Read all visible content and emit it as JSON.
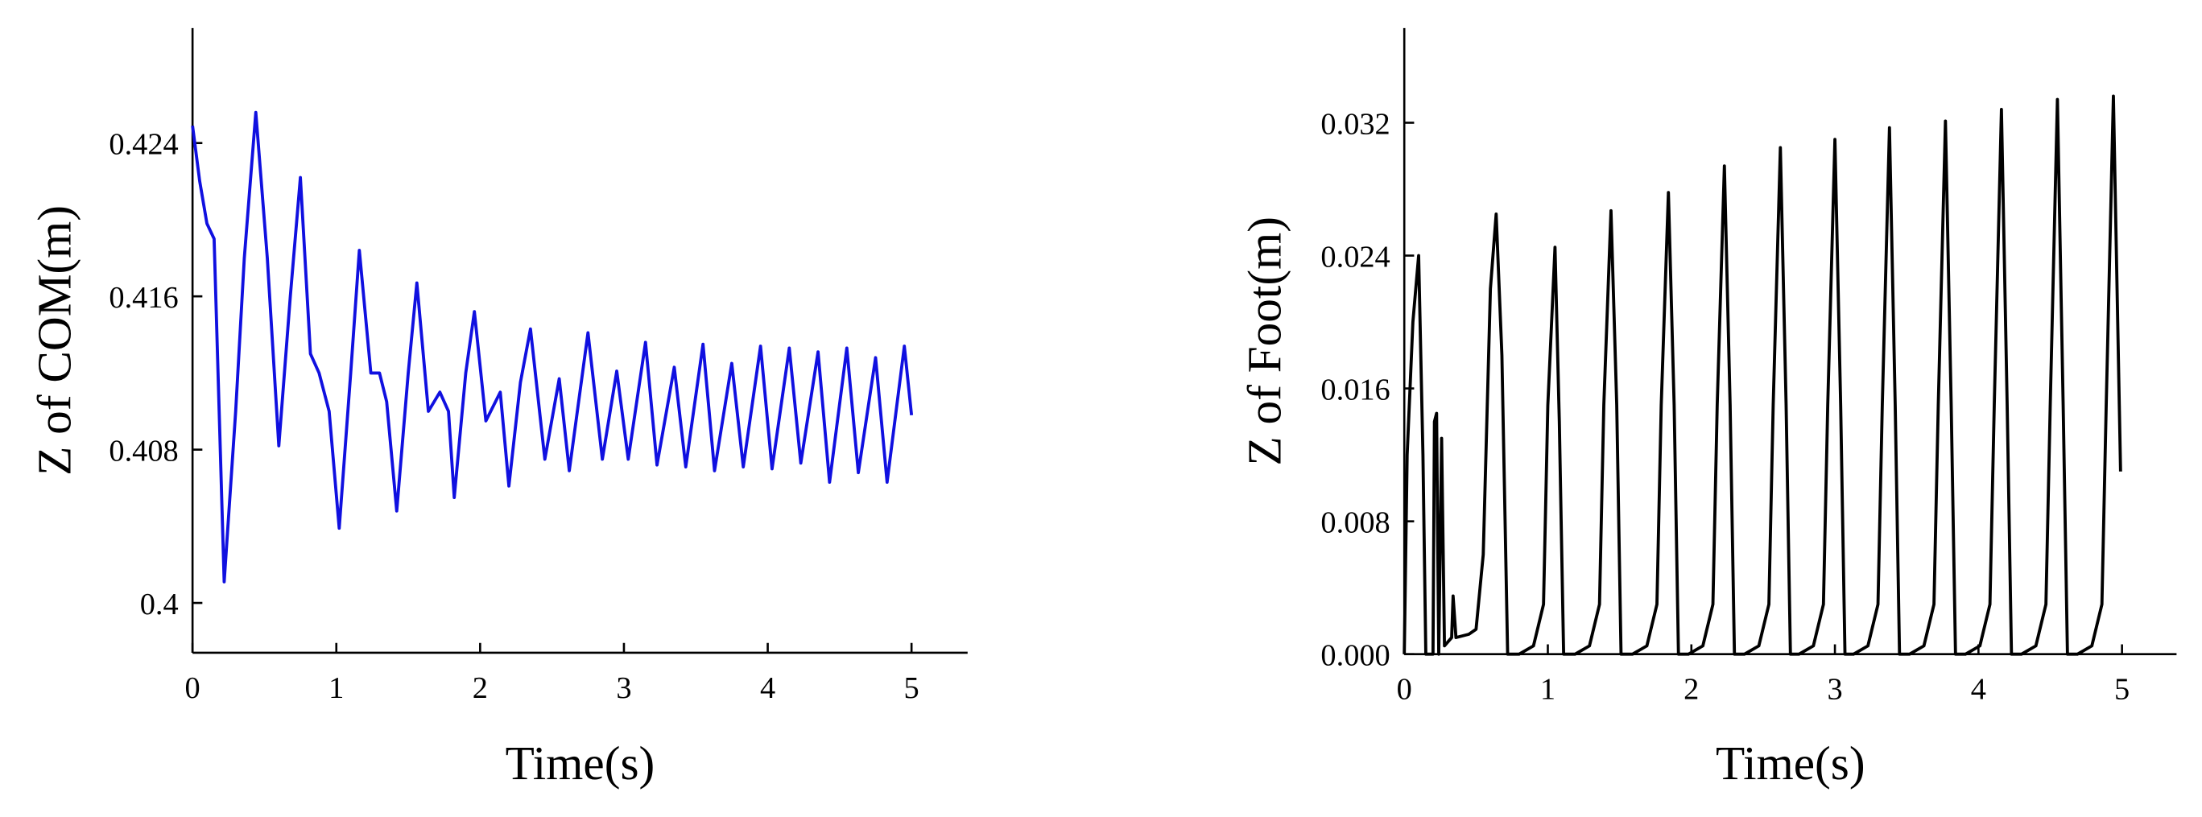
{
  "chart_data": [
    {
      "type": "line",
      "xlabel": "Time(s)",
      "ylabel": "Z of COM(m)",
      "color": "#1010e0",
      "xlim": [
        0,
        5.39
      ],
      "ylim": [
        0.3974,
        0.43
      ],
      "xticks": [
        0,
        1,
        2,
        3,
        4,
        5
      ],
      "yticks": [
        0.4,
        0.408,
        0.416,
        0.424
      ],
      "x": [
        0,
        0.05,
        0.1,
        0.15,
        0.22,
        0.3,
        0.36,
        0.44,
        0.52,
        0.6,
        0.68,
        0.75,
        0.82,
        0.88,
        0.95,
        1.02,
        1.1,
        1.16,
        1.24,
        1.3,
        1.35,
        1.42,
        1.5,
        1.56,
        1.64,
        1.72,
        1.78,
        1.82,
        1.9,
        1.96,
        2.04,
        2.14,
        2.2,
        2.28,
        2.35,
        2.45,
        2.55,
        2.62,
        2.75,
        2.85,
        2.95,
        3.03,
        3.15,
        3.23,
        3.35,
        3.43,
        3.55,
        3.63,
        3.75,
        3.83,
        3.95,
        4.03,
        4.15,
        4.23,
        4.35,
        4.43,
        4.55,
        4.63,
        4.75,
        4.83,
        4.95,
        5.0
      ],
      "values": [
        0.4249,
        0.422,
        0.4198,
        0.419,
        0.4011,
        0.41,
        0.418,
        0.4256,
        0.418,
        0.4082,
        0.416,
        0.4222,
        0.413,
        0.412,
        0.41,
        0.4039,
        0.412,
        0.4184,
        0.412,
        0.412,
        0.4105,
        0.4048,
        0.412,
        0.4167,
        0.41,
        0.411,
        0.41,
        0.4055,
        0.412,
        0.4152,
        0.4095,
        0.411,
        0.4061,
        0.4115,
        0.4143,
        0.4075,
        0.4117,
        0.4069,
        0.4141,
        0.4075,
        0.4121,
        0.4075,
        0.4136,
        0.4072,
        0.4123,
        0.4071,
        0.4135,
        0.4069,
        0.4125,
        0.4071,
        0.4134,
        0.407,
        0.4133,
        0.4073,
        0.4131,
        0.4063,
        0.4133,
        0.4068,
        0.4128,
        0.4063,
        0.4134,
        0.4098
      ]
    },
    {
      "type": "line",
      "xlabel": "Time(s)",
      "ylabel": "Z of Foot(m)",
      "color": "#000000",
      "xlim": [
        0,
        5.38
      ],
      "ylim": [
        0,
        0.0377
      ],
      "xticks": [
        0,
        1,
        2,
        3,
        4,
        5
      ],
      "yticks": [
        {
          "value": 0,
          "label": "0.000"
        },
        0.008,
        0.016,
        0.024,
        0.032
      ],
      "x": [
        0,
        0.02,
        0.06,
        0.1,
        0.13,
        0.15,
        0.2,
        0.21,
        0.225,
        0.24,
        0.26,
        0.28,
        0.33,
        0.34,
        0.36,
        0.45,
        0.5,
        0.55,
        0.6,
        0.64,
        0.68,
        0.72,
        0.8,
        0.9,
        0.97,
        1.0,
        1.05,
        1.08,
        1.11,
        1.19,
        1.29,
        1.36,
        1.39,
        1.44,
        1.48,
        1.51,
        1.59,
        1.69,
        1.76,
        1.79,
        1.84,
        1.88,
        1.91,
        1.98,
        2.08,
        2.15,
        2.18,
        2.23,
        2.27,
        2.3,
        2.37,
        2.47,
        2.54,
        2.57,
        2.62,
        2.66,
        2.69,
        2.75,
        2.85,
        2.92,
        2.95,
        3.0,
        3.04,
        3.07,
        3.13,
        3.23,
        3.3,
        3.33,
        3.38,
        3.42,
        3.45,
        3.52,
        3.62,
        3.69,
        3.72,
        3.77,
        3.81,
        3.84,
        3.91,
        4.01,
        4.08,
        4.11,
        4.16,
        4.2,
        4.23,
        4.3,
        4.4,
        4.47,
        4.5,
        4.55,
        4.59,
        4.62,
        4.69,
        4.79,
        4.86,
        4.89,
        4.94,
        4.97,
        4.99
      ],
      "values": [
        0,
        0.012,
        0.02,
        0.024,
        0.012,
        0,
        0,
        0.014,
        0.0145,
        0,
        0.013,
        0.0005,
        0.001,
        0.0035,
        0.001,
        0.0012,
        0.0015,
        0.006,
        0.022,
        0.0265,
        0.018,
        0,
        0,
        0.0005,
        0.003,
        0.015,
        0.0245,
        0.014,
        0,
        0,
        0.0005,
        0.003,
        0.015,
        0.0267,
        0.015,
        0,
        0,
        0.0005,
        0.003,
        0.015,
        0.0278,
        0.015,
        0,
        0,
        0.0005,
        0.003,
        0.015,
        0.0294,
        0.015,
        0,
        0,
        0.0005,
        0.003,
        0.015,
        0.0305,
        0.015,
        0,
        0,
        0.0005,
        0.003,
        0.015,
        0.031,
        0.015,
        0,
        0,
        0.0005,
        0.003,
        0.015,
        0.0317,
        0.015,
        0,
        0,
        0.0005,
        0.003,
        0.015,
        0.0321,
        0.015,
        0,
        0,
        0.0005,
        0.003,
        0.015,
        0.0328,
        0.015,
        0,
        0,
        0.0005,
        0.003,
        0.015,
        0.0334,
        0.015,
        0,
        0,
        0.0005,
        0.003,
        0.015,
        0.0336,
        0.02,
        0.011
      ]
    }
  ]
}
